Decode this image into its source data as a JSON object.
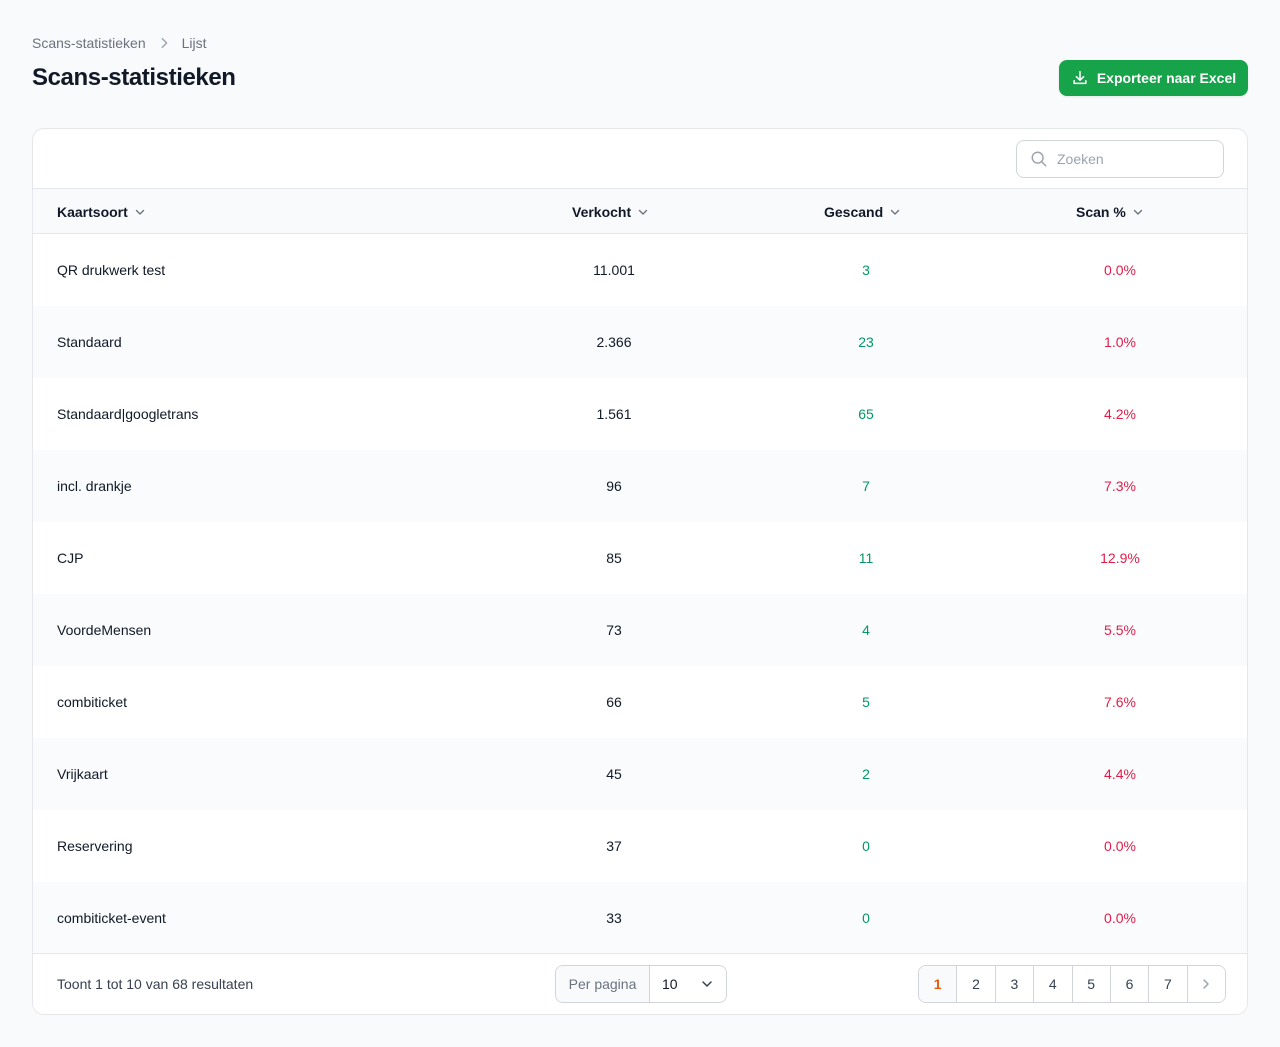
{
  "breadcrumb": {
    "parent": "Scans-statistieken",
    "current": "Lijst"
  },
  "page": {
    "title": "Scans-statistieken"
  },
  "actions": {
    "export_label": "Exporteer naar Excel"
  },
  "search": {
    "placeholder": "Zoeken"
  },
  "table": {
    "columns": [
      "Kaartsoort",
      "Verkocht",
      "Gescand",
      "Scan %"
    ],
    "rows": [
      {
        "name": "QR drukwerk test",
        "sold": "11.001",
        "scanned": "3",
        "pct": "0.0%"
      },
      {
        "name": "Standaard",
        "sold": "2.366",
        "scanned": "23",
        "pct": "1.0%"
      },
      {
        "name": "Standaard|googletrans",
        "sold": "1.561",
        "scanned": "65",
        "pct": "4.2%"
      },
      {
        "name": "incl. drankje",
        "sold": "96",
        "scanned": "7",
        "pct": "7.3%"
      },
      {
        "name": "CJP",
        "sold": "85",
        "scanned": "11",
        "pct": "12.9%"
      },
      {
        "name": "VoordeMensen",
        "sold": "73",
        "scanned": "4",
        "pct": "5.5%"
      },
      {
        "name": "combiticket",
        "sold": "66",
        "scanned": "5",
        "pct": "7.6%"
      },
      {
        "name": "Vrijkaart",
        "sold": "45",
        "scanned": "2",
        "pct": "4.4%"
      },
      {
        "name": "Reservering",
        "sold": "37",
        "scanned": "0",
        "pct": "0.0%"
      },
      {
        "name": "combiticket-event",
        "sold": "33",
        "scanned": "0",
        "pct": "0.0%"
      }
    ]
  },
  "footer": {
    "results_text": "Toont 1 tot 10 van 68 resultaten",
    "per_page_label": "Per pagina",
    "per_page_value": "10",
    "pages": [
      "1",
      "2",
      "3",
      "4",
      "5",
      "6",
      "7"
    ],
    "current_page": "1"
  },
  "colors": {
    "primary": "#16a34a",
    "scanned": "#059669",
    "percent": "#e11d48",
    "active_page": "#ea580c"
  }
}
